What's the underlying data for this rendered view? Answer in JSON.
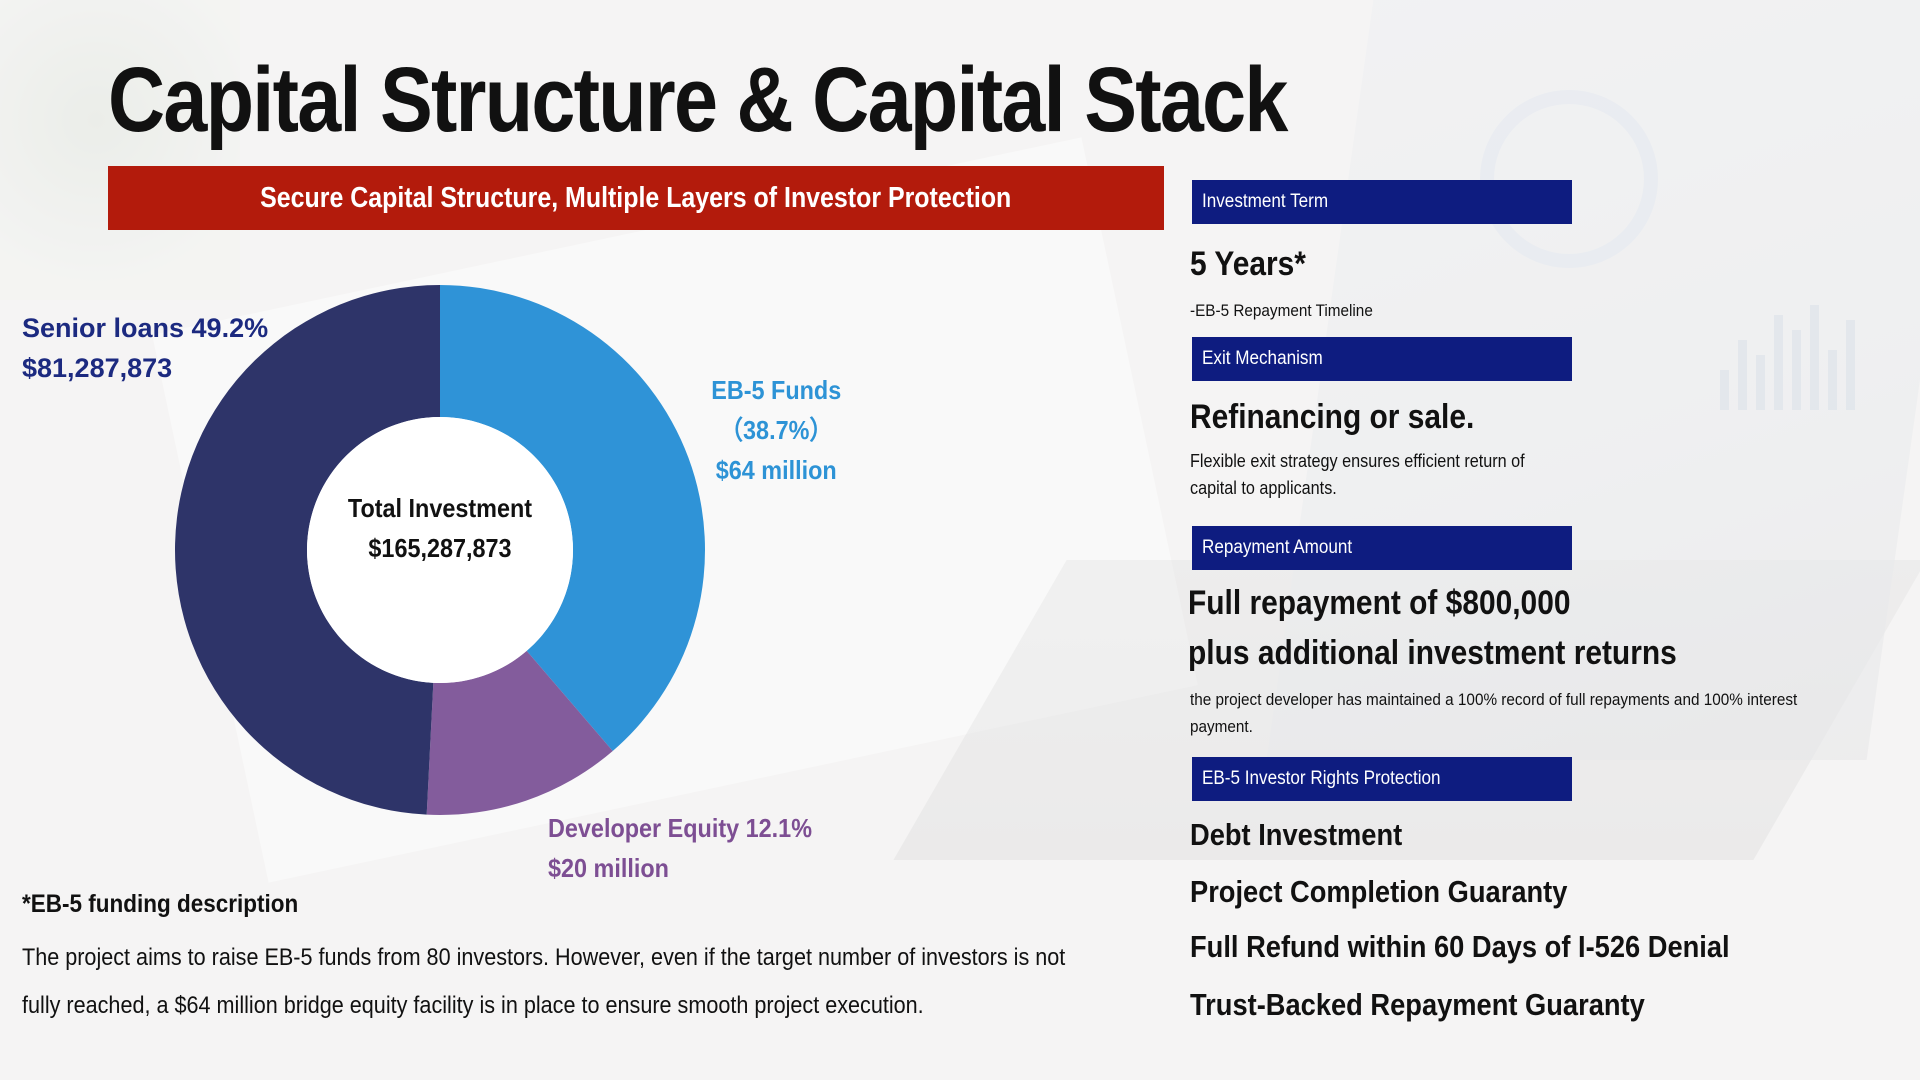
{
  "title": "Capital Structure & Capital Stack",
  "banner": "Secure Capital Structure, Multiple Layers of Investor Protection",
  "chart_data": {
    "type": "pie",
    "style": "donut",
    "center_label": [
      "Total Investment",
      "$165,287,873"
    ],
    "slices": [
      {
        "name": "EB-5 Funds",
        "percent": 38.7,
        "amount_label": "$64 million",
        "color": "#2f93d7"
      },
      {
        "name": "Developer Equity",
        "percent": 12.1,
        "amount_label": "$20 million",
        "color": "#835c9c"
      },
      {
        "name": "Senior loans",
        "percent": 49.2,
        "amount_label": "$81,287,873",
        "color": "#2e3469"
      }
    ]
  },
  "labels": {
    "senior_line1": "Senior loans 49.2%",
    "senior_line2": "$81,287,873",
    "eb5_line1": "EB-5 Funds",
    "eb5_line2": "（38.7%）",
    "eb5_line3": "$64 million",
    "dev_line1": "Developer Equity 12.1%",
    "dev_line2": "$20 million"
  },
  "note": {
    "title": "*EB-5 funding description",
    "body": "The project aims to raise EB-5 funds from 80 investors. However, even if the target number of investors is not fully reached, a $64 million bridge equity facility is in place to ensure smooth project execution."
  },
  "sections": {
    "term_header": "Investment Term",
    "term_value": "5 Years*",
    "term_note": "-EB-5 Repayment Timeline",
    "exit_header": "Exit Mechanism",
    "exit_value": "Refinancing or sale.",
    "exit_note": "Flexible exit strategy ensures efficient return of capital to applicants.",
    "repay_header": "Repayment Amount",
    "repay_value1": "Full repayment of $800,000",
    "repay_value2": "plus additional investment returns",
    "repay_note": "the project developer has maintained a 100% record of full repayments and 100% interest payment.",
    "rights_header": "EB-5 Investor Rights Protection",
    "rights_items": [
      "Debt Investment",
      "Project Completion Guaranty",
      "Full Refund within 60 Days of I-526 Denial",
      "Trust-Backed Repayment Guaranty"
    ]
  }
}
